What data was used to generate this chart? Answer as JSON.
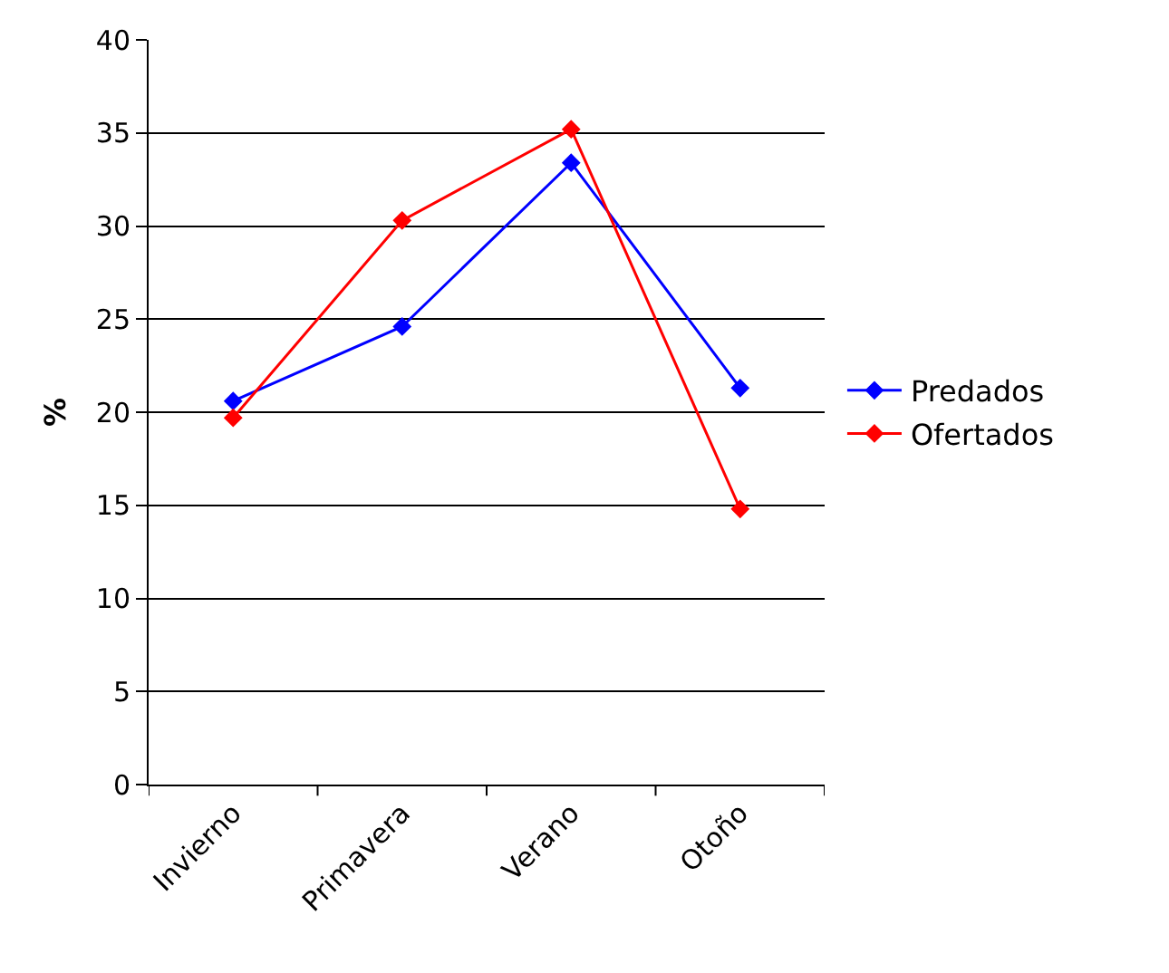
{
  "chart_data": {
    "type": "line",
    "ylabel": "%",
    "categories": [
      "Invierno",
      "Primavera",
      "Verano",
      "Otoño"
    ],
    "series": [
      {
        "name": "Predados",
        "color": "#0000ff",
        "values": [
          20.6,
          24.6,
          33.4,
          21.3
        ]
      },
      {
        "name": "Ofertados",
        "color": "#ff0000",
        "values": [
          19.7,
          30.3,
          35.2,
          14.8
        ]
      }
    ],
    "ylim": [
      0,
      40
    ],
    "yticks": [
      0,
      5,
      10,
      15,
      20,
      25,
      30,
      35,
      40
    ],
    "grid": "y",
    "legend": "right",
    "marker": "diamond",
    "line_style": "solid"
  }
}
